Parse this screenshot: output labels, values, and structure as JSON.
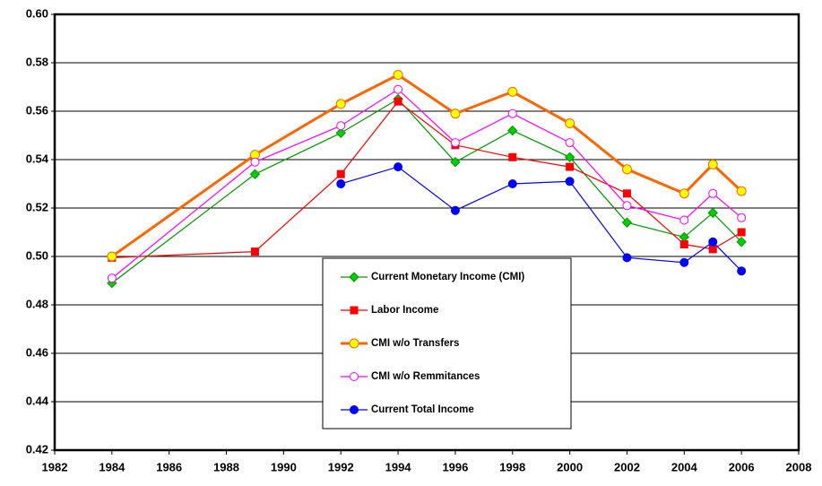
{
  "chart_data": {
    "type": "line",
    "x": [
      1984,
      1989,
      1992,
      1994,
      1996,
      1998,
      2000,
      2002,
      2004,
      2005,
      2006
    ],
    "series": [
      {
        "name": "Current Monetary Income (CMI)",
        "color": "#009900",
        "marker": "diamond",
        "marker_fill": "#00cc00",
        "values": [
          0.489,
          0.534,
          0.551,
          0.565,
          0.539,
          0.552,
          0.541,
          0.514,
          0.508,
          0.518,
          0.506
        ]
      },
      {
        "name": "Labor Income",
        "color": "#ff0000",
        "marker": "square",
        "marker_fill": "#ff0000",
        "values": [
          0.4995,
          0.502,
          0.534,
          0.564,
          0.546,
          0.541,
          0.537,
          0.526,
          0.505,
          0.503,
          0.51
        ]
      },
      {
        "name": "CMI w/o Transfers",
        "color": "#ff6600",
        "marker": "circle",
        "marker_fill": "#ffff00",
        "values": [
          0.5,
          0.542,
          0.563,
          0.575,
          0.559,
          0.568,
          0.555,
          0.536,
          0.526,
          0.538,
          0.527
        ]
      },
      {
        "name": "CMI w/o Remmitances",
        "color": "#ff00ff",
        "marker": "circle",
        "marker_fill": "#ffffff",
        "values": [
          0.491,
          0.539,
          0.554,
          0.569,
          0.547,
          0.559,
          0.547,
          0.521,
          0.515,
          0.526,
          0.516
        ]
      },
      {
        "name": "Current Total Income",
        "color": "#0000ff",
        "marker": "circle",
        "marker_fill": "#0000ff",
        "values": [
          null,
          null,
          0.53,
          0.537,
          0.519,
          0.53,
          0.531,
          0.4995,
          0.4975,
          0.506,
          0.494
        ]
      }
    ],
    "xlim": [
      1982,
      2008
    ],
    "xticks": [
      1982,
      1984,
      1986,
      1988,
      1990,
      1992,
      1994,
      1996,
      1998,
      2000,
      2002,
      2004,
      2006,
      2008
    ],
    "ylim": [
      0.42,
      0.6
    ],
    "yticks": [
      {
        "value": 0.42,
        "label": "0.42"
      },
      {
        "value": 0.44,
        "label": "0.44"
      },
      {
        "value": 0.46,
        "label": "0.46"
      },
      {
        "value": 0.48,
        "label": "0.48"
      },
      {
        "value": 0.5,
        "label": "0.50"
      },
      {
        "value": 0.52,
        "label": "0.52"
      },
      {
        "value": 0.54,
        "label": "0.54"
      },
      {
        "value": 0.56,
        "label": "0.56"
      },
      {
        "value": 0.58,
        "label": "0.58"
      },
      {
        "value": 0.6,
        "label": "0.60"
      }
    ],
    "grid": true
  }
}
